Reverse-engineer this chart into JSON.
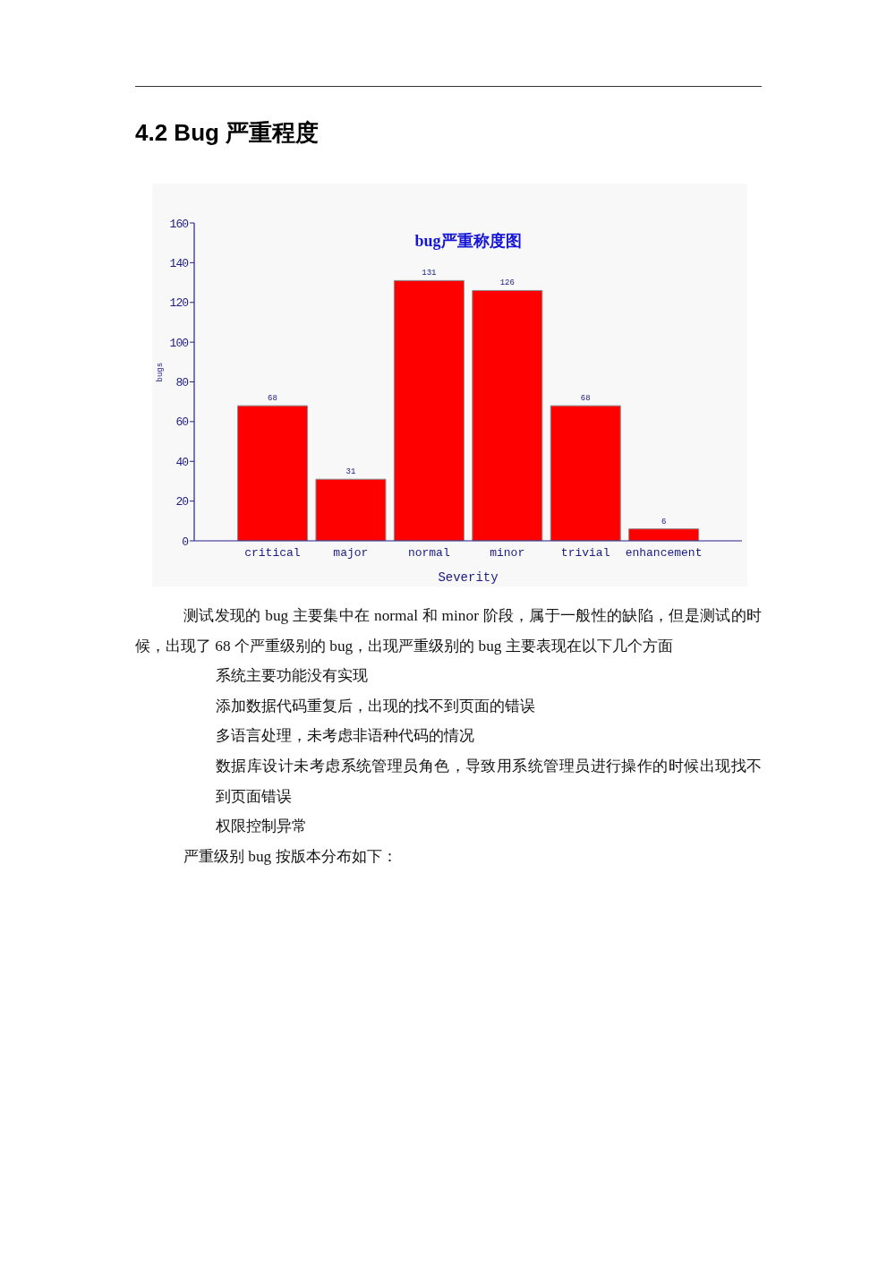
{
  "chart_data": {
    "type": "bar",
    "title": "bug严重称度图",
    "xlabel": "Severity",
    "ylabel": "bugs",
    "categories": [
      "critical",
      "major",
      "normal",
      "minor",
      "trivial",
      "enhancement"
    ],
    "values": [
      68,
      31,
      131,
      126,
      68,
      6
    ],
    "color": "#ff0000",
    "ylim": [
      0,
      160
    ],
    "yticks": [
      0,
      20,
      40,
      60,
      80,
      100,
      120,
      140,
      160
    ],
    "data_labels": true,
    "annotations": [
      "4.2 Bug 严重程度",
      "测试发现的 bug 主要集中在 normal 和 minor 阶段，属于一般性的缺陷，但是测试的时候，出现了 68 个严重级别的 bug，出现严重级别的 bug 主要表现在以下几个方面",
      "系统主要功能没有实现",
      "添加数据代码重复后，出现的找不到页面的错误",
      "多语言处理，未考虑非语种代码的情况",
      "数据库设计未考虑系统管理员角色，导致用系统管理员进行操作的时候出现找不到页面错误",
      "权限控制异常",
      "严重级别 bug 按版本分布如下："
    ]
  }
}
